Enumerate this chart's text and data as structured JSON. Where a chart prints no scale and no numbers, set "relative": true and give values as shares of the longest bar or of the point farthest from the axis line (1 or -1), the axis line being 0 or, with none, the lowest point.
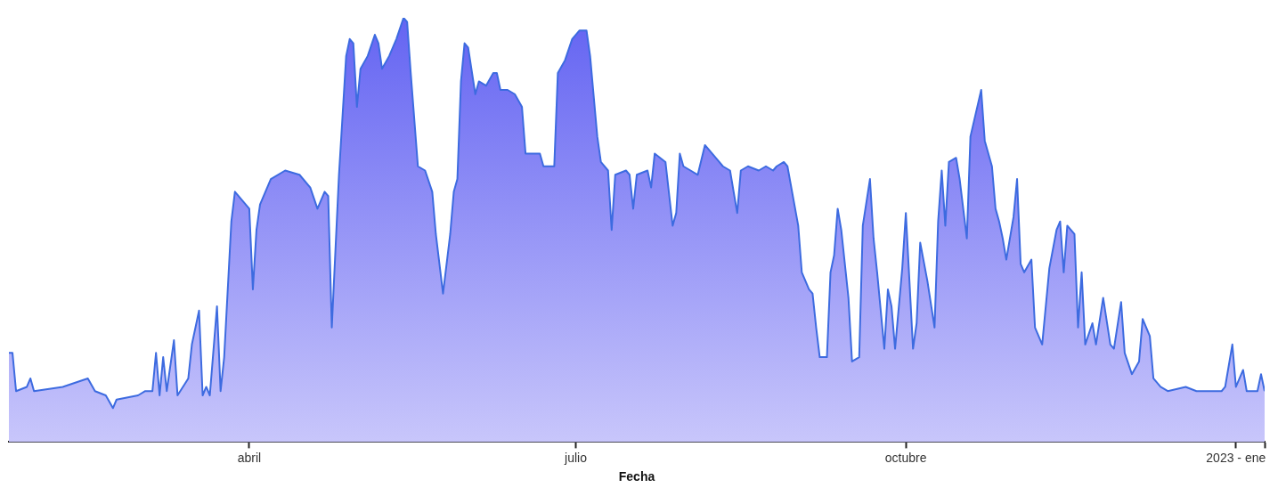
{
  "chart_data": {
    "type": "area",
    "xlabel": "Fecha",
    "relative": true,
    "grid": false,
    "legend": false,
    "xlim": [
      "2022-01-24",
      "2023-01-09"
    ],
    "xticks": [
      {
        "value": "2022-04-01",
        "label": "abril"
      },
      {
        "value": "2022-07-01",
        "label": "julio"
      },
      {
        "value": "2022-10-01",
        "label": "octubre"
      },
      {
        "value": "2023-01-01",
        "label": "2023 - ene"
      },
      {
        "value": "2023-01-09",
        "label": null
      }
    ],
    "x": [
      "2022-01-24",
      "2022-01-25",
      "2022-01-26",
      "2022-01-29",
      "2022-01-30",
      "2022-01-31",
      "2022-02-08",
      "2022-02-15",
      "2022-02-17",
      "2022-02-20",
      "2022-02-22",
      "2022-02-23",
      "2022-03-01",
      "2022-03-03",
      "2022-03-05",
      "2022-03-06",
      "2022-03-07",
      "2022-03-08",
      "2022-03-09",
      "2022-03-11",
      "2022-03-12",
      "2022-03-15",
      "2022-03-16",
      "2022-03-18",
      "2022-03-19",
      "2022-03-20",
      "2022-03-21",
      "2022-03-23",
      "2022-03-24",
      "2022-03-25",
      "2022-03-27",
      "2022-03-28",
      "2022-03-30",
      "2022-04-01",
      "2022-04-02",
      "2022-04-03",
      "2022-04-04",
      "2022-04-07",
      "2022-04-11",
      "2022-04-15",
      "2022-04-18",
      "2022-04-20",
      "2022-04-22",
      "2022-04-23",
      "2022-04-24",
      "2022-04-26",
      "2022-04-28",
      "2022-04-29",
      "2022-04-30",
      "2022-05-01",
      "2022-05-02",
      "2022-05-04",
      "2022-05-06",
      "2022-05-07",
      "2022-05-08",
      "2022-05-10",
      "2022-05-12",
      "2022-05-14",
      "2022-05-15",
      "2022-05-16",
      "2022-05-18",
      "2022-05-20",
      "2022-05-22",
      "2022-05-23",
      "2022-05-25",
      "2022-05-27",
      "2022-05-28",
      "2022-05-29",
      "2022-05-30",
      "2022-05-31",
      "2022-06-01",
      "2022-06-03",
      "2022-06-04",
      "2022-06-06",
      "2022-06-08",
      "2022-06-09",
      "2022-06-10",
      "2022-06-12",
      "2022-06-14",
      "2022-06-16",
      "2022-06-17",
      "2022-06-19",
      "2022-06-21",
      "2022-06-22",
      "2022-06-25",
      "2022-06-26",
      "2022-06-28",
      "2022-06-30",
      "2022-07-02",
      "2022-07-04",
      "2022-07-05",
      "2022-07-07",
      "2022-07-08",
      "2022-07-10",
      "2022-07-11",
      "2022-07-12",
      "2022-07-15",
      "2022-07-16",
      "2022-07-17",
      "2022-07-18",
      "2022-07-21",
      "2022-07-22",
      "2022-07-23",
      "2022-07-26",
      "2022-07-28",
      "2022-07-29",
      "2022-07-30",
      "2022-07-31",
      "2022-08-02",
      "2022-08-04",
      "2022-08-06",
      "2022-08-08",
      "2022-08-10",
      "2022-08-11",
      "2022-08-13",
      "2022-08-15",
      "2022-08-16",
      "2022-08-18",
      "2022-08-21",
      "2022-08-23",
      "2022-08-25",
      "2022-08-26",
      "2022-08-28",
      "2022-08-29",
      "2022-09-01",
      "2022-09-02",
      "2022-09-04",
      "2022-09-05",
      "2022-09-06",
      "2022-09-07",
      "2022-09-09",
      "2022-09-10",
      "2022-09-11",
      "2022-09-12",
      "2022-09-13",
      "2022-09-15",
      "2022-09-16",
      "2022-09-18",
      "2022-09-19",
      "2022-09-21",
      "2022-09-22",
      "2022-09-23",
      "2022-09-25",
      "2022-09-26",
      "2022-09-27",
      "2022-09-28",
      "2022-09-30",
      "2022-10-01",
      "2022-10-03",
      "2022-10-04",
      "2022-10-05",
      "2022-10-07",
      "2022-10-09",
      "2022-10-10",
      "2022-10-11",
      "2022-10-12",
      "2022-10-13",
      "2022-10-15",
      "2022-10-16",
      "2022-10-18",
      "2022-10-19",
      "2022-10-22",
      "2022-10-23",
      "2022-10-25",
      "2022-10-26",
      "2022-10-27",
      "2022-10-28",
      "2022-10-29",
      "2022-10-31",
      "2022-11-01",
      "2022-11-02",
      "2022-11-03",
      "2022-11-05",
      "2022-11-06",
      "2022-11-08",
      "2022-11-10",
      "2022-11-12",
      "2022-11-13",
      "2022-11-14",
      "2022-11-15",
      "2022-11-17",
      "2022-11-18",
      "2022-11-19",
      "2022-11-20",
      "2022-11-22",
      "2022-11-23",
      "2022-11-25",
      "2022-11-27",
      "2022-11-28",
      "2022-11-30",
      "2022-12-01",
      "2022-12-03",
      "2022-12-05",
      "2022-12-06",
      "2022-12-08",
      "2022-12-09",
      "2022-12-11",
      "2022-12-13",
      "2022-12-18",
      "2022-12-21",
      "2022-12-28",
      "2022-12-29",
      "2022-12-31",
      "2023-01-01",
      "2023-01-03",
      "2023-01-04",
      "2023-01-07",
      "2023-01-08",
      "2023-01-09"
    ],
    "series": [
      {
        "color": "#3d6be0",
        "values": [
          0.21,
          0.21,
          0.12,
          0.13,
          0.15,
          0.12,
          0.13,
          0.15,
          0.12,
          0.11,
          0.08,
          0.1,
          0.11,
          0.12,
          0.12,
          0.21,
          0.11,
          0.2,
          0.12,
          0.24,
          0.11,
          0.15,
          0.23,
          0.31,
          0.11,
          0.13,
          0.11,
          0.32,
          0.12,
          0.2,
          0.52,
          0.59,
          0.57,
          0.55,
          0.36,
          0.5,
          0.56,
          0.62,
          0.64,
          0.63,
          0.6,
          0.55,
          0.59,
          0.58,
          0.27,
          0.63,
          0.91,
          0.95,
          0.94,
          0.79,
          0.88,
          0.91,
          0.96,
          0.94,
          0.88,
          0.91,
          0.95,
          1.0,
          0.99,
          0.87,
          0.65,
          0.64,
          0.59,
          0.49,
          0.35,
          0.49,
          0.59,
          0.62,
          0.85,
          0.94,
          0.93,
          0.82,
          0.85,
          0.84,
          0.87,
          0.87,
          0.83,
          0.83,
          0.82,
          0.79,
          0.68,
          0.68,
          0.68,
          0.65,
          0.65,
          0.87,
          0.9,
          0.95,
          0.97,
          0.97,
          0.91,
          0.72,
          0.66,
          0.64,
          0.5,
          0.63,
          0.64,
          0.63,
          0.55,
          0.63,
          0.64,
          0.6,
          0.68,
          0.66,
          0.51,
          0.54,
          0.68,
          0.65,
          0.64,
          0.63,
          0.7,
          0.68,
          0.66,
          0.65,
          0.64,
          0.54,
          0.64,
          0.65,
          0.64,
          0.65,
          0.64,
          0.65,
          0.66,
          0.65,
          0.51,
          0.4,
          0.36,
          0.35,
          0.27,
          0.2,
          0.2,
          0.4,
          0.44,
          0.55,
          0.5,
          0.34,
          0.19,
          0.2,
          0.51,
          0.62,
          0.48,
          0.4,
          0.22,
          0.36,
          0.32,
          0.22,
          0.41,
          0.54,
          0.22,
          0.28,
          0.47,
          0.38,
          0.27,
          0.52,
          0.64,
          0.51,
          0.66,
          0.67,
          0.62,
          0.48,
          0.72,
          0.83,
          0.71,
          0.65,
          0.55,
          0.52,
          0.48,
          0.43,
          0.53,
          0.62,
          0.42,
          0.4,
          0.43,
          0.27,
          0.23,
          0.41,
          0.5,
          0.52,
          0.4,
          0.51,
          0.49,
          0.27,
          0.4,
          0.23,
          0.28,
          0.23,
          0.34,
          0.23,
          0.22,
          0.33,
          0.21,
          0.16,
          0.19,
          0.29,
          0.25,
          0.15,
          0.13,
          0.12,
          0.13,
          0.12,
          0.12,
          0.13,
          0.23,
          0.13,
          0.17,
          0.12,
          0.12,
          0.16,
          0.12
        ]
      }
    ]
  }
}
